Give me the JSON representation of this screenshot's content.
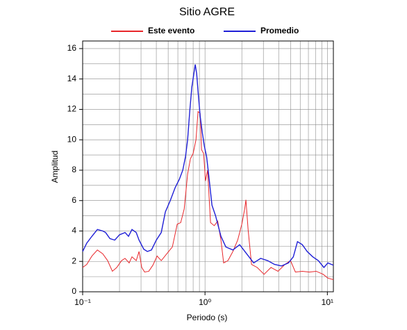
{
  "chart_data": {
    "type": "line",
    "title": "Sitio AGRE",
    "xlabel": "Periodo (s)",
    "ylabel": "Amplitud",
    "xscale": "log",
    "xlim": [
      0.1,
      11.2
    ],
    "ylim": [
      0,
      16.5
    ],
    "xticks": [
      {
        "value": 0.1,
        "label": "10⁻¹"
      },
      {
        "value": 1,
        "label": "10⁰"
      },
      {
        "value": 10,
        "label": "10¹"
      }
    ],
    "yticks": [
      0,
      2,
      4,
      6,
      8,
      10,
      12,
      14,
      16
    ],
    "xgrid_minor": [
      0.2,
      0.3,
      0.4,
      0.5,
      0.6,
      0.7,
      0.8,
      0.9,
      2,
      3,
      4,
      5,
      6,
      7,
      8,
      9
    ],
    "ygrid_minor": [
      1,
      3,
      5,
      7,
      9,
      11,
      13,
      15
    ],
    "grid": true,
    "legend": "top",
    "series": [
      {
        "name": "Este evento",
        "color": "#e8262a",
        "x": [
          0.1,
          0.108,
          0.119,
          0.132,
          0.146,
          0.16,
          0.175,
          0.19,
          0.208,
          0.222,
          0.24,
          0.253,
          0.274,
          0.289,
          0.304,
          0.321,
          0.347,
          0.375,
          0.406,
          0.439,
          0.487,
          0.541,
          0.593,
          0.633,
          0.676,
          0.721,
          0.76,
          0.8,
          0.844,
          0.877,
          0.912,
          0.937,
          0.974,
          1.01,
          1.05,
          1.11,
          1.19,
          1.27,
          1.35,
          1.42,
          1.54,
          1.69,
          1.85,
          2.0,
          2.11,
          2.16,
          2.25,
          2.4,
          2.67,
          3.04,
          3.46,
          3.95,
          4.5,
          5.0,
          5.48,
          6.24,
          7.12,
          8.11,
          9.24,
          10.1,
          11.2
        ],
        "values": [
          1.6,
          1.8,
          2.35,
          2.75,
          2.5,
          2.05,
          1.35,
          1.6,
          2.05,
          2.2,
          1.9,
          2.3,
          2.05,
          2.65,
          1.6,
          1.3,
          1.35,
          1.75,
          2.35,
          2.05,
          2.5,
          2.95,
          4.45,
          4.55,
          5.45,
          7.75,
          8.75,
          9.1,
          10.0,
          11.85,
          11.75,
          9.35,
          9.1,
          7.3,
          8.0,
          4.55,
          4.35,
          4.65,
          3.4,
          1.9,
          2.05,
          2.65,
          3.4,
          4.45,
          5.45,
          6.05,
          4.1,
          1.8,
          1.6,
          1.15,
          1.6,
          1.35,
          1.8,
          2.05,
          1.3,
          1.35,
          1.3,
          1.35,
          1.15,
          0.9,
          0.8
        ]
      },
      {
        "name": "Promedio",
        "color": "#1f1fd6",
        "x": [
          0.1,
          0.108,
          0.119,
          0.132,
          0.146,
          0.154,
          0.167,
          0.183,
          0.2,
          0.222,
          0.237,
          0.253,
          0.274,
          0.289,
          0.316,
          0.338,
          0.365,
          0.4,
          0.439,
          0.474,
          0.52,
          0.57,
          0.617,
          0.658,
          0.693,
          0.721,
          0.75,
          0.78,
          0.811,
          0.832,
          0.855,
          0.877,
          0.912,
          0.949,
          0.987,
          1.03,
          1.07,
          1.14,
          1.22,
          1.35,
          1.48,
          1.69,
          1.92,
          2.19,
          2.5,
          2.85,
          3.25,
          3.7,
          4.22,
          4.81,
          5.27,
          5.7,
          6.24,
          6.84,
          7.6,
          8.44,
          9.37,
          10.1,
          11.2
        ],
        "values": [
          2.65,
          3.2,
          3.65,
          4.1,
          4.0,
          3.9,
          3.5,
          3.4,
          3.75,
          3.9,
          3.65,
          4.1,
          3.9,
          3.4,
          2.8,
          2.65,
          2.75,
          3.4,
          3.9,
          5.25,
          6.0,
          6.85,
          7.4,
          8.0,
          8.9,
          10.0,
          11.85,
          13.45,
          14.35,
          14.95,
          14.35,
          13.2,
          11.6,
          10.5,
          9.6,
          8.9,
          7.75,
          5.7,
          5.0,
          3.65,
          2.95,
          2.75,
          3.1,
          2.5,
          1.9,
          2.2,
          2.05,
          1.8,
          1.7,
          1.9,
          2.3,
          3.3,
          3.1,
          2.65,
          2.3,
          2.05,
          1.6,
          1.9,
          1.75
        ]
      }
    ]
  }
}
